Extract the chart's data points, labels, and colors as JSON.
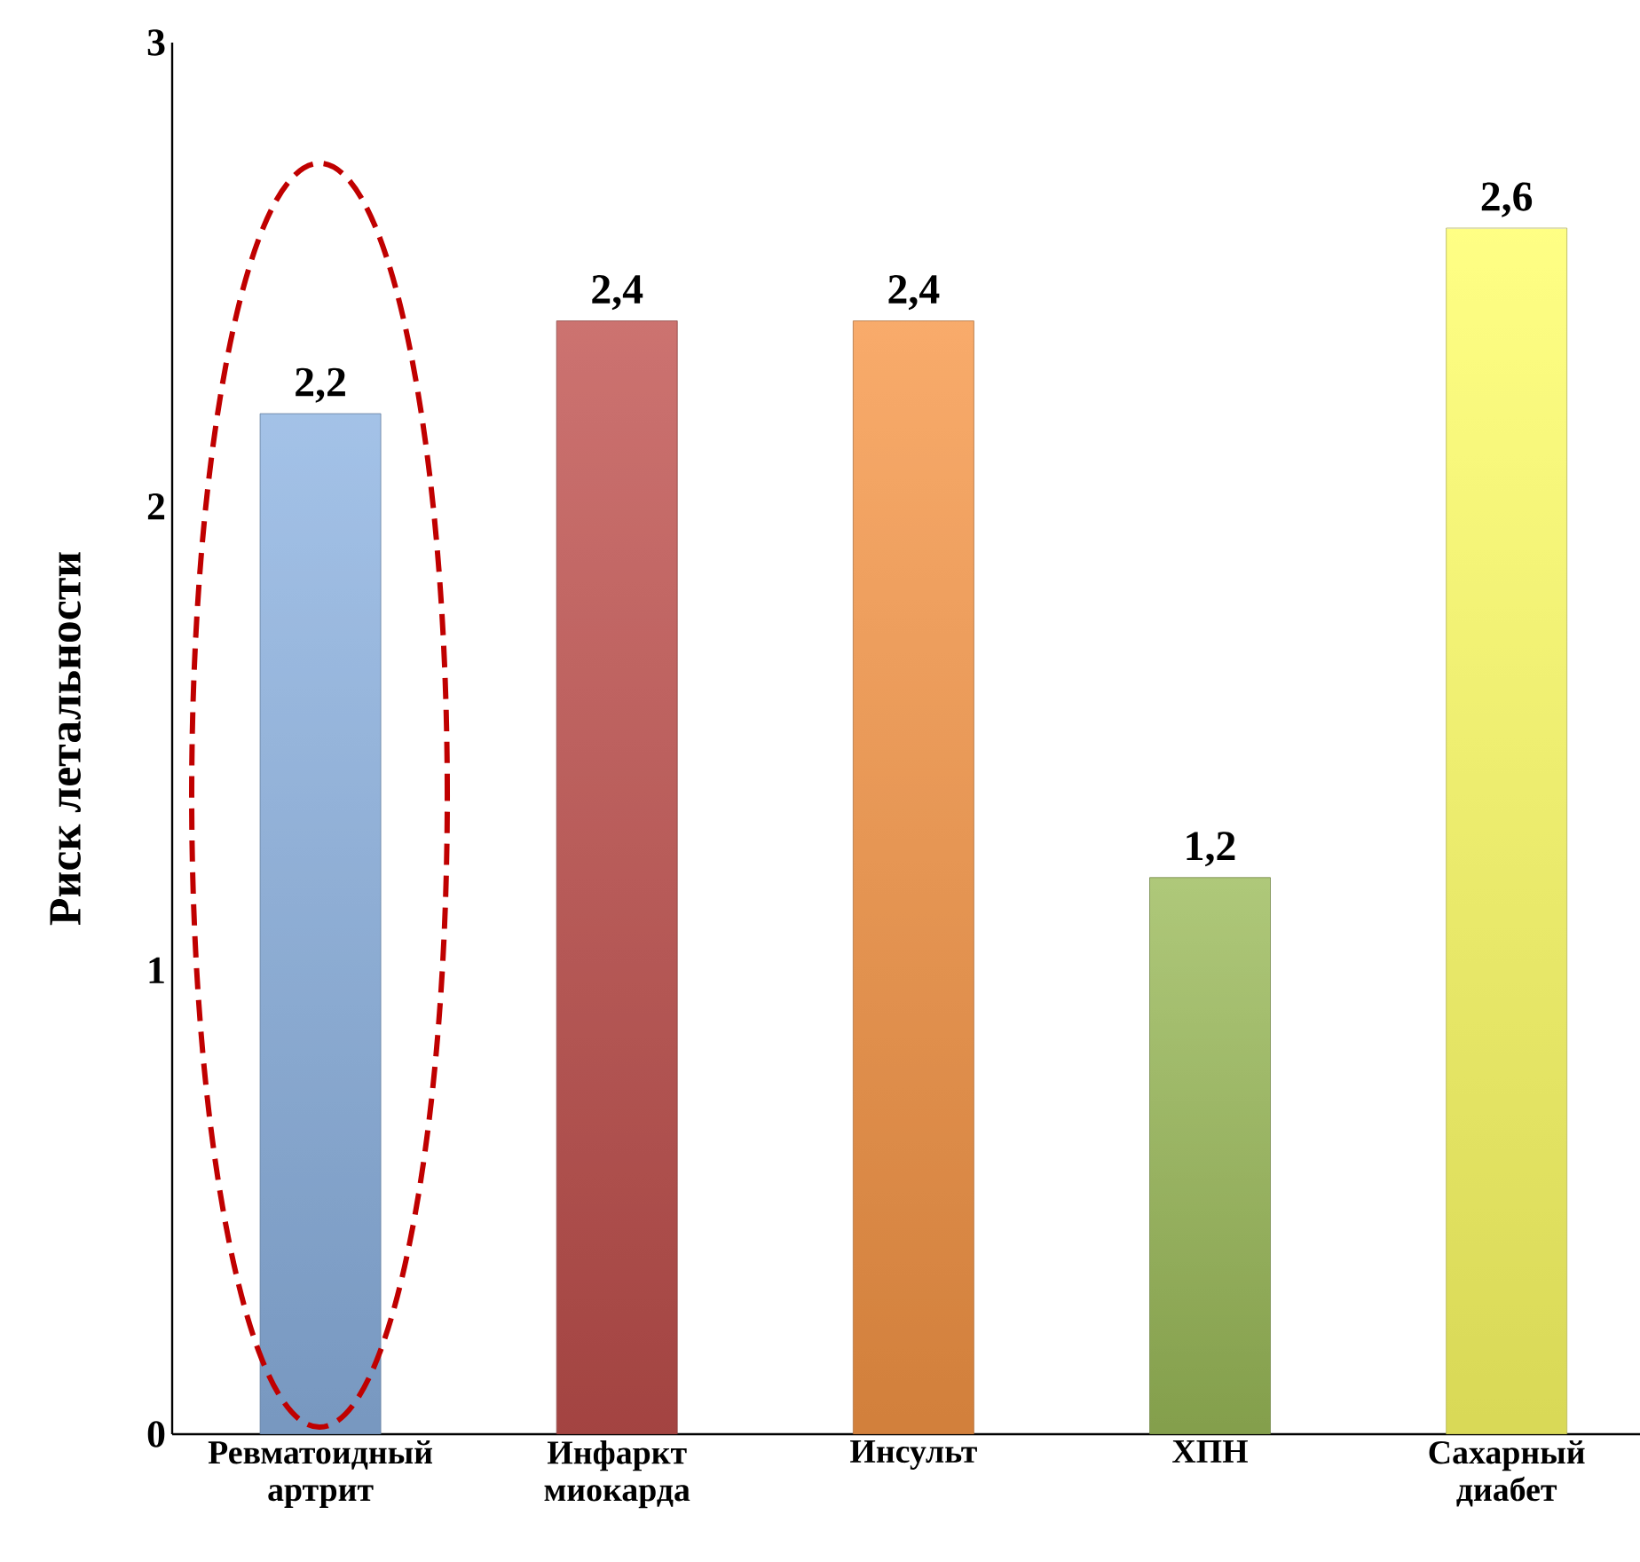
{
  "chart_data": {
    "type": "bar",
    "ylabel": "Риск летальности",
    "categories": [
      "Ревматоидный артрит",
      "Инфаркт миокарда",
      "Инсульт",
      "ХПН",
      "Сахарный диабет"
    ],
    "values": [
      2.2,
      2.4,
      2.4,
      1.2,
      2.6
    ],
    "colors": [
      "#8db3e2",
      "#c0504d",
      "#f79646",
      "#9bbb59",
      "#ffff66"
    ],
    "ylim": [
      0,
      3
    ],
    "yticks": [
      0,
      1,
      2,
      3
    ],
    "data_labels": true,
    "value_labels": [
      "2,2",
      "2,4",
      "2,4",
      "1,2",
      "2,6"
    ],
    "grid": false
  }
}
